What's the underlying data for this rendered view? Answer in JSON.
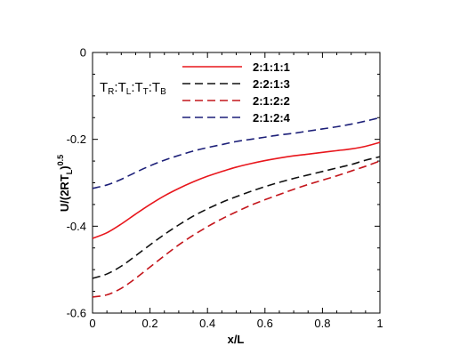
{
  "chart_data": {
    "type": "line",
    "xlabel": "x/L",
    "ylabel": "U/(2RT",
    "ylabel_sub": "L",
    "ylabel_close": ")",
    "ylabel_sup": "0.5",
    "xlim": [
      0,
      1
    ],
    "ylim": [
      -0.6,
      0
    ],
    "xticks": [
      0,
      0.2,
      0.4,
      0.6,
      0.8,
      1
    ],
    "xtick_labels": [
      "0",
      "0.2",
      "0.4",
      "0.6",
      "0.8",
      "1"
    ],
    "yticks": [
      -0.6,
      -0.4,
      -0.2,
      0
    ],
    "ytick_labels": [
      "-0.6",
      "-0.4",
      "-0.2",
      "0"
    ],
    "grid": false,
    "legend_placement": "top-right",
    "legend_title": {
      "parts": [
        {
          "t": "T",
          "sub": "R"
        },
        {
          "t": ":T",
          "sub": "L"
        },
        {
          "t": ":T",
          "sub": "T"
        },
        {
          "t": ":T",
          "sub": "B"
        }
      ]
    },
    "x": [
      0,
      0.05,
      0.1,
      0.15,
      0.2,
      0.25,
      0.3,
      0.35,
      0.4,
      0.45,
      0.5,
      0.55,
      0.6,
      0.65,
      0.7,
      0.75,
      0.8,
      0.85,
      0.9,
      0.95,
      1.0
    ],
    "series": [
      {
        "name": "2:1:1:1",
        "color": "#e8161c",
        "dash": "solid",
        "values": [
          -0.428,
          -0.415,
          -0.395,
          -0.372,
          -0.35,
          -0.33,
          -0.313,
          -0.298,
          -0.285,
          -0.274,
          -0.264,
          -0.256,
          -0.249,
          -0.243,
          -0.238,
          -0.234,
          -0.23,
          -0.226,
          -0.222,
          -0.216,
          -0.207
        ]
      },
      {
        "name": "2:2:1:3",
        "color": "#111111",
        "dash": "dashed",
        "values": [
          -0.52,
          -0.51,
          -0.492,
          -0.468,
          -0.443,
          -0.419,
          -0.397,
          -0.377,
          -0.36,
          -0.345,
          -0.332,
          -0.32,
          -0.309,
          -0.299,
          -0.29,
          -0.282,
          -0.274,
          -0.266,
          -0.258,
          -0.248,
          -0.24
        ]
      },
      {
        "name": "2:1:2:2",
        "color": "#c4161c",
        "dash": "dashed",
        "values": [
          -0.563,
          -0.558,
          -0.543,
          -0.52,
          -0.494,
          -0.468,
          -0.443,
          -0.421,
          -0.401,
          -0.383,
          -0.367,
          -0.352,
          -0.339,
          -0.327,
          -0.315,
          -0.304,
          -0.294,
          -0.284,
          -0.273,
          -0.262,
          -0.25
        ]
      },
      {
        "name": "2:1:2:4",
        "color": "#1c1f78",
        "dash": "dashed",
        "values": [
          -0.313,
          -0.305,
          -0.292,
          -0.276,
          -0.261,
          -0.248,
          -0.237,
          -0.227,
          -0.219,
          -0.212,
          -0.205,
          -0.2,
          -0.195,
          -0.19,
          -0.186,
          -0.181,
          -0.176,
          -0.171,
          -0.165,
          -0.158,
          -0.15
        ]
      }
    ]
  }
}
